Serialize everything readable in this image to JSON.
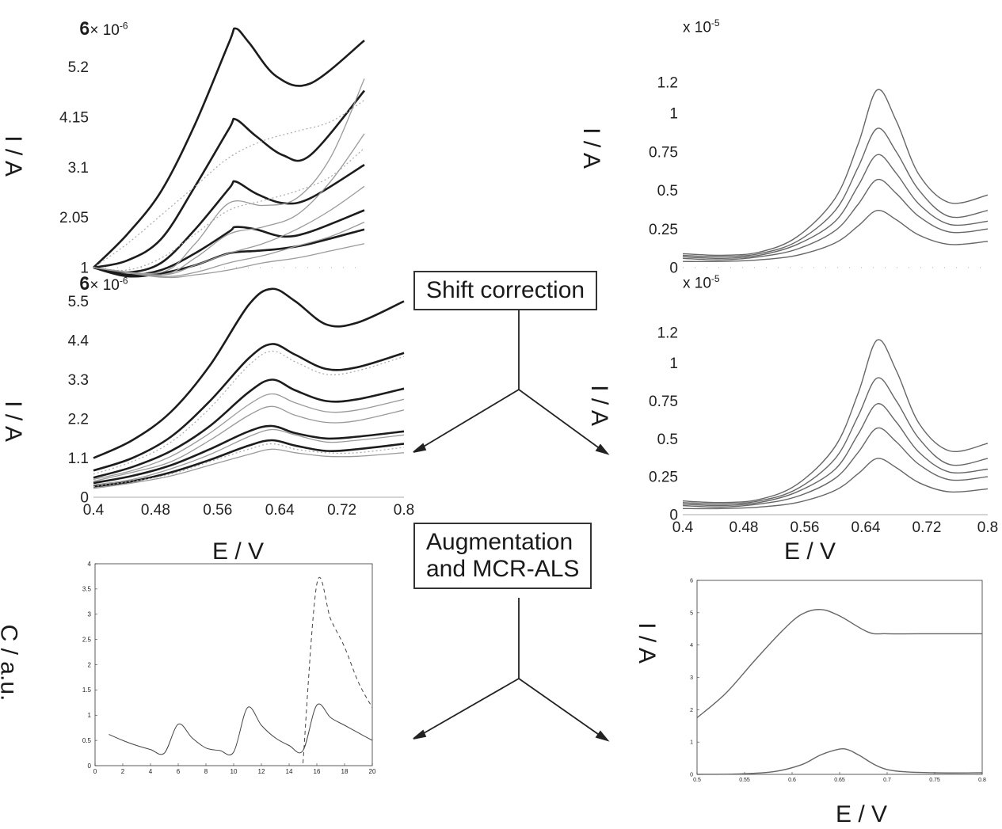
{
  "labels": {
    "ia": "I / A",
    "ca": "C / a.u.",
    "ev": "E / V"
  },
  "steps": {
    "shift": "Shift correction",
    "aug_line1": "Augmentation",
    "aug_line2": "and MCR-ALS"
  },
  "multipliers": {
    "a": "6",
    "a_exp": "-6",
    "b": "6",
    "b_exp": "-6",
    "c_exp": "-5",
    "d_exp": "-5"
  },
  "chart_data": [
    {
      "id": "raw-voltammograms",
      "type": "line",
      "ylabel": "I / A",
      "y_multiplier": "x 10^-6",
      "ylim": [
        1,
        6
      ],
      "yticks": [
        "1",
        "2.05",
        "3.1",
        "4.15",
        "5.2",
        "6"
      ],
      "xlim": [
        0.4,
        0.8
      ],
      "series": [
        {
          "style": "bold",
          "x": [
            0.4,
            0.45,
            0.5,
            0.55,
            0.6,
            0.61,
            0.63,
            0.67,
            0.72,
            0.8
          ],
          "y": [
            1.0,
            1.7,
            2.6,
            4.0,
            5.7,
            6.0,
            5.7,
            5.0,
            4.85,
            5.75
          ]
        },
        {
          "style": "bold",
          "x": [
            0.4,
            0.45,
            0.5,
            0.55,
            0.6,
            0.61,
            0.64,
            0.68,
            0.72,
            0.8
          ],
          "y": [
            1.0,
            1.15,
            1.6,
            2.7,
            3.9,
            4.1,
            3.75,
            3.35,
            3.35,
            4.7
          ]
        },
        {
          "style": "bold",
          "x": [
            0.4,
            0.45,
            0.5,
            0.55,
            0.6,
            0.61,
            0.64,
            0.68,
            0.72,
            0.8
          ],
          "y": [
            1.0,
            0.9,
            1.1,
            1.8,
            2.65,
            2.8,
            2.55,
            2.35,
            2.45,
            3.15
          ]
        },
        {
          "style": "bold",
          "x": [
            0.4,
            0.45,
            0.5,
            0.55,
            0.6,
            0.61,
            0.64,
            0.68,
            0.72,
            0.8
          ],
          "y": [
            1.0,
            0.85,
            0.95,
            1.3,
            1.75,
            1.85,
            1.8,
            1.65,
            1.75,
            2.2
          ]
        },
        {
          "style": "bold",
          "x": [
            0.4,
            0.45,
            0.5,
            0.55,
            0.6,
            0.64,
            0.68,
            0.72,
            0.8
          ],
          "y": [
            1.0,
            0.82,
            0.88,
            1.05,
            1.3,
            1.35,
            1.4,
            1.5,
            1.8
          ]
        },
        {
          "style": "dotted",
          "x": [
            0.4,
            0.45,
            0.5,
            0.55,
            0.6,
            0.65,
            0.7,
            0.75,
            0.8
          ],
          "y": [
            1.0,
            1.5,
            2.1,
            2.7,
            3.3,
            3.65,
            3.85,
            4.05,
            4.5
          ]
        },
        {
          "style": "dotted",
          "x": [
            0.4,
            0.45,
            0.5,
            0.55,
            0.6,
            0.65,
            0.7,
            0.75,
            0.8
          ],
          "y": [
            1.0,
            0.95,
            1.2,
            1.7,
            2.2,
            2.4,
            2.6,
            2.9,
            3.5
          ]
        },
        {
          "style": "thin",
          "x": [
            0.4,
            0.5,
            0.55,
            0.6,
            0.65,
            0.7,
            0.75,
            0.8
          ],
          "y": [
            1.0,
            0.9,
            1.5,
            2.35,
            2.3,
            2.45,
            3.3,
            4.95
          ]
        },
        {
          "style": "thin",
          "x": [
            0.4,
            0.5,
            0.55,
            0.6,
            0.65,
            0.7,
            0.75,
            0.8
          ],
          "y": [
            1.0,
            0.85,
            1.2,
            1.7,
            1.85,
            2.1,
            2.8,
            3.8
          ]
        },
        {
          "style": "thin",
          "x": [
            0.4,
            0.5,
            0.55,
            0.6,
            0.65,
            0.7,
            0.75,
            0.8
          ],
          "y": [
            1.0,
            0.85,
            1.05,
            1.3,
            1.5,
            1.8,
            2.2,
            2.7
          ]
        },
        {
          "style": "thin",
          "x": [
            0.4,
            0.5,
            0.55,
            0.6,
            0.65,
            0.7,
            0.75,
            0.8
          ],
          "y": [
            1.0,
            0.82,
            0.9,
            1.1,
            1.25,
            1.45,
            1.65,
            1.95
          ]
        },
        {
          "style": "thin",
          "x": [
            0.4,
            0.5,
            0.55,
            0.6,
            0.65,
            0.7,
            0.75,
            0.8
          ],
          "y": [
            1.0,
            0.8,
            0.85,
            0.95,
            1.1,
            1.2,
            1.35,
            1.5
          ]
        }
      ]
    },
    {
      "id": "shift-corrected",
      "type": "line",
      "ylabel": "I / A",
      "xlabel": "E / V",
      "y_multiplier": "x 10^-6",
      "ylim": [
        0,
        6
      ],
      "yticks": [
        "0",
        "1.1",
        "2.2",
        "3.3",
        "4.4",
        "5.5",
        "6"
      ],
      "xlim": [
        0.4,
        0.8
      ],
      "xticks": [
        "0.4",
        "0.48",
        "0.56",
        "0.64",
        "0.72",
        "0.8"
      ],
      "series": [
        {
          "style": "bold",
          "x": [
            0.4,
            0.45,
            0.5,
            0.55,
            0.6,
            0.63,
            0.66,
            0.7,
            0.74,
            0.8
          ],
          "y": [
            1.1,
            1.6,
            2.4,
            3.7,
            5.4,
            5.85,
            5.5,
            4.85,
            4.9,
            5.5
          ]
        },
        {
          "style": "bold",
          "x": [
            0.4,
            0.45,
            0.5,
            0.55,
            0.6,
            0.63,
            0.66,
            0.7,
            0.74,
            0.8
          ],
          "y": [
            0.75,
            1.1,
            1.7,
            2.7,
            3.9,
            4.3,
            4.0,
            3.6,
            3.65,
            4.05
          ]
        },
        {
          "style": "bold",
          "x": [
            0.4,
            0.45,
            0.5,
            0.55,
            0.6,
            0.63,
            0.66,
            0.7,
            0.74,
            0.8
          ],
          "y": [
            0.55,
            0.85,
            1.3,
            2.0,
            2.95,
            3.3,
            3.0,
            2.7,
            2.75,
            3.05
          ]
        },
        {
          "style": "bold",
          "x": [
            0.4,
            0.45,
            0.5,
            0.55,
            0.6,
            0.63,
            0.66,
            0.7,
            0.74,
            0.8
          ],
          "y": [
            0.4,
            0.6,
            0.9,
            1.35,
            1.85,
            2.0,
            1.8,
            1.65,
            1.7,
            1.85
          ]
        },
        {
          "style": "bold",
          "x": [
            0.4,
            0.45,
            0.5,
            0.55,
            0.6,
            0.63,
            0.66,
            0.7,
            0.74,
            0.8
          ],
          "y": [
            0.3,
            0.45,
            0.7,
            1.05,
            1.45,
            1.6,
            1.45,
            1.3,
            1.35,
            1.5
          ]
        },
        {
          "style": "dotted",
          "x": [
            0.4,
            0.45,
            0.5,
            0.55,
            0.6,
            0.63,
            0.66,
            0.7,
            0.74,
            0.8
          ],
          "y": [
            0.65,
            1.0,
            1.55,
            2.5,
            3.7,
            4.1,
            3.8,
            3.45,
            3.55,
            3.95
          ]
        },
        {
          "style": "thin",
          "x": [
            0.4,
            0.45,
            0.5,
            0.55,
            0.6,
            0.63,
            0.66,
            0.7,
            0.74,
            0.8
          ],
          "y": [
            0.5,
            0.75,
            1.15,
            1.8,
            2.6,
            2.9,
            2.65,
            2.4,
            2.45,
            2.75
          ]
        },
        {
          "style": "thin",
          "x": [
            0.4,
            0.45,
            0.5,
            0.55,
            0.6,
            0.63,
            0.66,
            0.7,
            0.74,
            0.8
          ],
          "y": [
            0.45,
            0.7,
            1.0,
            1.6,
            2.3,
            2.55,
            2.3,
            2.1,
            2.15,
            2.45
          ]
        },
        {
          "style": "thin",
          "x": [
            0.4,
            0.45,
            0.5,
            0.55,
            0.6,
            0.63,
            0.66,
            0.7,
            0.74,
            0.8
          ],
          "y": [
            0.35,
            0.5,
            0.8,
            1.2,
            1.7,
            1.9,
            1.75,
            1.55,
            1.6,
            1.75
          ]
        },
        {
          "style": "thin",
          "x": [
            0.4,
            0.45,
            0.5,
            0.55,
            0.6,
            0.63,
            0.66,
            0.7,
            0.74,
            0.8
          ],
          "y": [
            0.25,
            0.4,
            0.6,
            0.9,
            1.2,
            1.35,
            1.25,
            1.15,
            1.15,
            1.25
          ]
        },
        {
          "style": "dotted",
          "x": [
            0.4,
            0.45,
            0.5,
            0.55,
            0.6,
            0.63,
            0.66,
            0.7,
            0.74,
            0.8
          ],
          "y": [
            0.3,
            0.45,
            0.65,
            1.0,
            1.35,
            1.5,
            1.35,
            1.25,
            1.25,
            1.4
          ]
        }
      ]
    },
    {
      "id": "top-right",
      "type": "line",
      "ylabel": "I / A",
      "y_multiplier": "x 10^-5",
      "ylim": [
        0,
        1.45
      ],
      "yticks": [
        "0",
        "0.25",
        "0.5",
        "0.75",
        "1",
        "1.2"
      ],
      "xlim": [
        0.4,
        0.8
      ],
      "series": [
        {
          "x": [
            0.4,
            0.45,
            0.5,
            0.55,
            0.6,
            0.63,
            0.655,
            0.68,
            0.71,
            0.75,
            0.8
          ],
          "y": [
            0.09,
            0.08,
            0.1,
            0.2,
            0.45,
            0.8,
            1.15,
            0.95,
            0.6,
            0.42,
            0.47
          ]
        },
        {
          "x": [
            0.4,
            0.45,
            0.5,
            0.55,
            0.6,
            0.63,
            0.655,
            0.68,
            0.71,
            0.75,
            0.8
          ],
          "y": [
            0.08,
            0.07,
            0.09,
            0.17,
            0.37,
            0.65,
            0.9,
            0.75,
            0.5,
            0.33,
            0.37
          ]
        },
        {
          "x": [
            0.4,
            0.45,
            0.5,
            0.55,
            0.6,
            0.63,
            0.655,
            0.68,
            0.71,
            0.75,
            0.8
          ],
          "y": [
            0.07,
            0.06,
            0.08,
            0.15,
            0.3,
            0.53,
            0.73,
            0.61,
            0.41,
            0.28,
            0.3
          ]
        },
        {
          "x": [
            0.4,
            0.45,
            0.5,
            0.55,
            0.6,
            0.63,
            0.655,
            0.68,
            0.71,
            0.75,
            0.8
          ],
          "y": [
            0.06,
            0.05,
            0.07,
            0.12,
            0.24,
            0.41,
            0.57,
            0.48,
            0.33,
            0.23,
            0.25
          ]
        },
        {
          "x": [
            0.4,
            0.45,
            0.5,
            0.55,
            0.6,
            0.63,
            0.655,
            0.68,
            0.71,
            0.75,
            0.8
          ],
          "y": [
            0.04,
            0.04,
            0.05,
            0.08,
            0.16,
            0.27,
            0.37,
            0.31,
            0.21,
            0.15,
            0.17
          ]
        }
      ]
    },
    {
      "id": "middle-right",
      "type": "line",
      "ylabel": "I / A",
      "xlabel": "E / V",
      "y_multiplier": "x 10^-5",
      "ylim": [
        0,
        1.45
      ],
      "yticks": [
        "0",
        "0.25",
        "0.5",
        "0.75",
        "1",
        "1.2"
      ],
      "xlim": [
        0.4,
        0.8
      ],
      "xticks": [
        "0.4",
        "0.48",
        "0.56",
        "0.64",
        "0.72",
        "0.8"
      ],
      "series": [
        {
          "x": [
            0.4,
            0.45,
            0.5,
            0.55,
            0.6,
            0.63,
            0.655,
            0.68,
            0.71,
            0.75,
            0.8
          ],
          "y": [
            0.09,
            0.08,
            0.1,
            0.2,
            0.45,
            0.8,
            1.15,
            0.95,
            0.6,
            0.42,
            0.47
          ]
        },
        {
          "x": [
            0.4,
            0.45,
            0.5,
            0.55,
            0.6,
            0.63,
            0.655,
            0.68,
            0.71,
            0.75,
            0.8
          ],
          "y": [
            0.08,
            0.07,
            0.09,
            0.17,
            0.37,
            0.65,
            0.9,
            0.75,
            0.5,
            0.33,
            0.37
          ]
        },
        {
          "x": [
            0.4,
            0.45,
            0.5,
            0.55,
            0.6,
            0.63,
            0.655,
            0.68,
            0.71,
            0.75,
            0.8
          ],
          "y": [
            0.07,
            0.06,
            0.08,
            0.15,
            0.3,
            0.53,
            0.73,
            0.61,
            0.41,
            0.28,
            0.3
          ]
        },
        {
          "x": [
            0.4,
            0.45,
            0.5,
            0.55,
            0.6,
            0.63,
            0.655,
            0.68,
            0.71,
            0.75,
            0.8
          ],
          "y": [
            0.06,
            0.05,
            0.07,
            0.12,
            0.24,
            0.41,
            0.57,
            0.48,
            0.33,
            0.23,
            0.25
          ]
        },
        {
          "x": [
            0.4,
            0.45,
            0.5,
            0.55,
            0.6,
            0.63,
            0.655,
            0.68,
            0.71,
            0.75,
            0.8
          ],
          "y": [
            0.04,
            0.04,
            0.05,
            0.08,
            0.16,
            0.27,
            0.37,
            0.31,
            0.21,
            0.15,
            0.17
          ]
        }
      ]
    },
    {
      "id": "concentration-profiles",
      "type": "line",
      "ylabel": "C / a.u.",
      "xlim": [
        0,
        20
      ],
      "ylim": [
        0,
        4
      ],
      "xticks": [
        "0",
        "2",
        "4",
        "6",
        "8",
        "10",
        "12",
        "14",
        "16",
        "18",
        "20"
      ],
      "yticks": [
        "0",
        "0.5",
        "1",
        "1.5",
        "2",
        "2.5",
        "3",
        "3.5",
        "4"
      ],
      "series": [
        {
          "style": "solid",
          "x": [
            1,
            2,
            3,
            4,
            5,
            6,
            7,
            8,
            9,
            10,
            11,
            12,
            13,
            14,
            15,
            16,
            17,
            18,
            19,
            20
          ],
          "y": [
            0.62,
            0.5,
            0.4,
            0.32,
            0.25,
            0.82,
            0.55,
            0.35,
            0.3,
            0.27,
            1.15,
            0.8,
            0.55,
            0.4,
            0.3,
            1.2,
            0.95,
            0.8,
            0.65,
            0.5
          ]
        },
        {
          "style": "dashed",
          "x": [
            15,
            16,
            17,
            18,
            19,
            20
          ],
          "y": [
            0.05,
            3.6,
            2.9,
            2.35,
            1.65,
            1.15
          ]
        }
      ]
    },
    {
      "id": "pure-spectra",
      "type": "line",
      "ylabel": "I / A",
      "xlabel": "E / V",
      "xlim": [
        0.5,
        0.8
      ],
      "ylim": [
        0,
        6
      ],
      "xticks": [
        "0.5",
        "0.55",
        "0.6",
        "0.65",
        "0.7",
        "0.75",
        "0.8"
      ],
      "yticks": [
        "0",
        "1",
        "2",
        "3",
        "4",
        "5",
        "6"
      ],
      "series": [
        {
          "x": [
            0.5,
            0.53,
            0.56,
            0.59,
            0.61,
            0.63,
            0.65,
            0.68,
            0.7,
            0.75,
            0.8
          ],
          "y": [
            1.75,
            2.5,
            3.5,
            4.45,
            4.95,
            5.1,
            4.9,
            4.4,
            4.35,
            4.35,
            4.35
          ]
        },
        {
          "x": [
            0.5,
            0.54,
            0.58,
            0.61,
            0.63,
            0.65,
            0.66,
            0.67,
            0.7,
            0.75,
            0.8
          ],
          "y": [
            0.0,
            0.01,
            0.08,
            0.3,
            0.6,
            0.78,
            0.75,
            0.6,
            0.15,
            0.05,
            0.05
          ]
        }
      ]
    }
  ]
}
